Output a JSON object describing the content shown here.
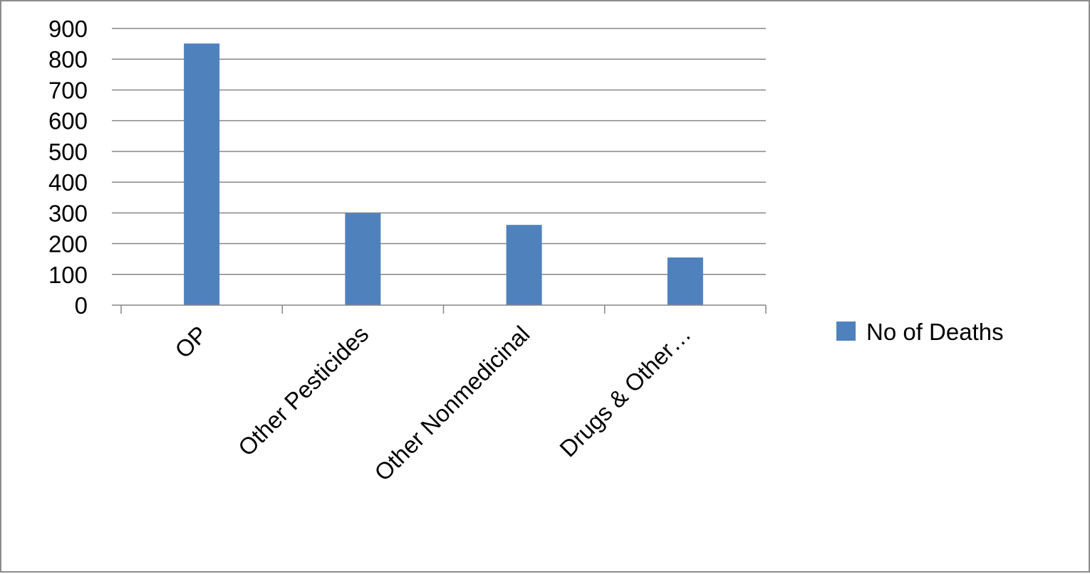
{
  "chart_data": {
    "type": "bar",
    "categories": [
      "OP",
      "Other Pesticides",
      "Other Nonmedicinal",
      "Drugs & Other…"
    ],
    "series": [
      {
        "name": "No of Deaths",
        "values": [
          851,
          299,
          261,
          155
        ],
        "color": "#4f81bd"
      }
    ],
    "title": "",
    "xlabel": "",
    "ylabel": "",
    "ylim": [
      0,
      900
    ],
    "yticks": [
      0,
      100,
      200,
      300,
      400,
      500,
      600,
      700,
      800,
      900
    ],
    "grid": true,
    "legend_position": "right"
  }
}
